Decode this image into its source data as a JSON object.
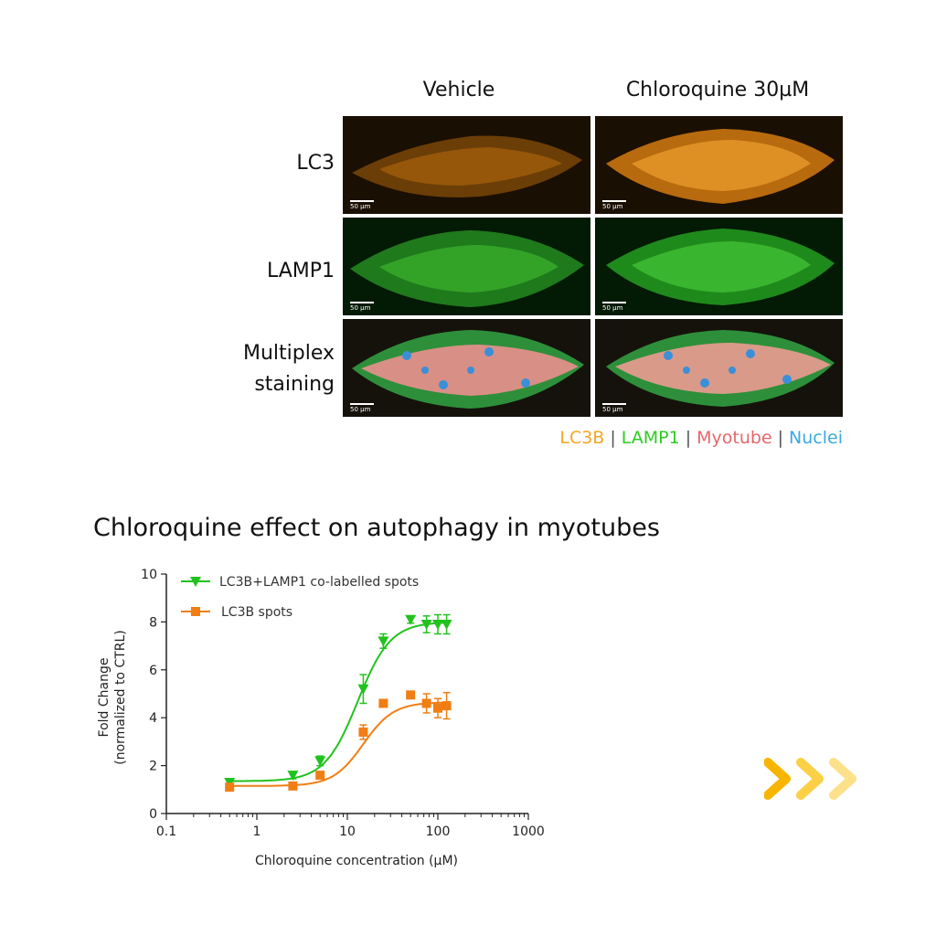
{
  "figure": {
    "columns": [
      "Vehicle",
      "Chloroquine 30µM"
    ],
    "rows": [
      "LC3",
      "LAMP1",
      "Multiplex\nstaining"
    ],
    "scale_bar": "50 µm",
    "stain_legend": [
      {
        "label": "LC3B",
        "color": "#f5a623"
      },
      {
        "label": "LAMP1",
        "color": "#2ecc1f"
      },
      {
        "label": "Myotube",
        "color": "#e8666a"
      },
      {
        "label": "Nuclei",
        "color": "#3aa9e0"
      }
    ]
  },
  "chart_data": {
    "type": "scatter",
    "title": "Chloroquine effect on autophagy in myotubes",
    "xlabel": "Chloroquine concentration (µM)",
    "ylabel_lines": [
      "Fold Change",
      "(normalized to CTRL)"
    ],
    "xscale": "log",
    "xlim": [
      0.1,
      1000
    ],
    "ylim": [
      0,
      10
    ],
    "x_ticks": [
      0.1,
      1,
      10,
      100,
      1000
    ],
    "x_tick_labels": [
      "0.1",
      "1",
      "10",
      "100",
      "1000"
    ],
    "y_ticks": [
      0,
      2,
      4,
      6,
      8,
      10
    ],
    "y_tick_labels": [
      "0",
      "2",
      "4",
      "6",
      "8",
      "10"
    ],
    "legend_position": "top-left",
    "series": [
      {
        "name": "LC3B+LAMP1 co-labelled spots",
        "color": "#22c21e",
        "marker": "triangle-down",
        "x": [
          0.5,
          2.5,
          5,
          15,
          25,
          50,
          75,
          100,
          125
        ],
        "y": [
          1.3,
          1.6,
          2.2,
          5.2,
          7.2,
          8.1,
          7.9,
          7.9,
          7.9
        ],
        "err": [
          0.1,
          0.15,
          0.2,
          0.6,
          0.3,
          0.15,
          0.35,
          0.4,
          0.4
        ],
        "fit": {
          "bottom": 1.35,
          "top": 8.0,
          "ec50": 13,
          "hill": 2.4
        }
      },
      {
        "name": "LC3B spots",
        "color": "#f07e14",
        "marker": "square",
        "x": [
          0.5,
          2.5,
          5,
          15,
          25,
          50,
          75,
          100,
          125
        ],
        "y": [
          1.1,
          1.15,
          1.6,
          3.4,
          4.6,
          4.95,
          4.6,
          4.4,
          4.5
        ],
        "err": [
          0.1,
          0.1,
          0.1,
          0.3,
          0.15,
          0.15,
          0.4,
          0.4,
          0.55
        ],
        "fit": {
          "bottom": 1.15,
          "top": 4.65,
          "ec50": 15,
          "hill": 2.6
        }
      }
    ]
  }
}
